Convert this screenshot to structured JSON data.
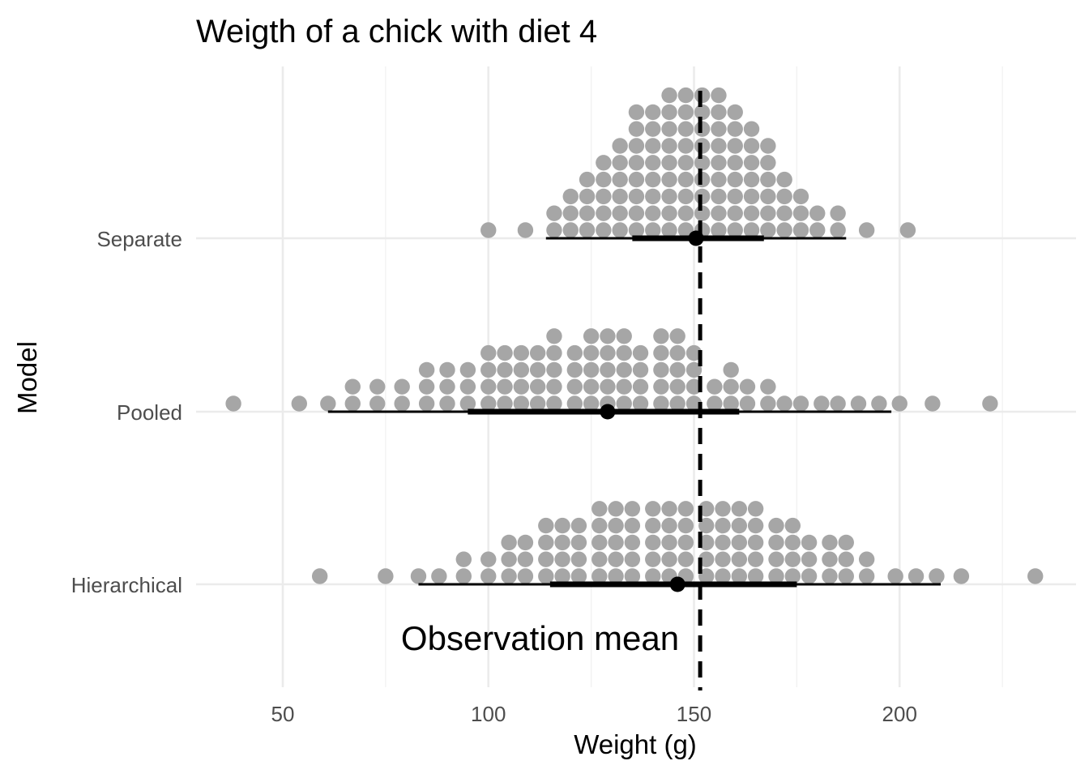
{
  "chart_data": {
    "type": "scatter",
    "title": "Weigth of a chick with diet 4",
    "xlabel": "Weight (g)",
    "ylabel": "Model",
    "xlim": [
      29,
      238
    ],
    "x_ticks": [
      50,
      100,
      150,
      200
    ],
    "x_tick_labels": [
      "50",
      "100",
      "150",
      "200"
    ],
    "categories": [
      "Separate",
      "Pooled",
      "Hierarchical"
    ],
    "grid": "major and minor vertical, major horizontal",
    "legend": "none",
    "reference_line": {
      "x": 151.5,
      "style": "dashed",
      "label": "Observation mean"
    },
    "colors": {
      "dots": "#a6a6a6",
      "summary": "#000000",
      "text": "#000000"
    },
    "series": [
      {
        "name": "Separate",
        "point_estimate": 150.5,
        "interval_66": [
          135,
          167
        ],
        "interval_95": [
          114,
          187
        ],
        "dotplot": [
          {
            "x": 100,
            "count": 1
          },
          {
            "x": 109,
            "count": 1
          },
          {
            "x": 116,
            "count": 2
          },
          {
            "x": 120,
            "count": 3
          },
          {
            "x": 124,
            "count": 4
          },
          {
            "x": 128,
            "count": 5
          },
          {
            "x": 132,
            "count": 6
          },
          {
            "x": 136,
            "count": 8
          },
          {
            "x": 140,
            "count": 8
          },
          {
            "x": 144,
            "count": 9
          },
          {
            "x": 148,
            "count": 9
          },
          {
            "x": 152,
            "count": 9
          },
          {
            "x": 156,
            "count": 9
          },
          {
            "x": 160,
            "count": 8
          },
          {
            "x": 164,
            "count": 7
          },
          {
            "x": 168,
            "count": 6
          },
          {
            "x": 172,
            "count": 4
          },
          {
            "x": 176,
            "count": 3
          },
          {
            "x": 180,
            "count": 2
          },
          {
            "x": 185,
            "count": 2
          },
          {
            "x": 192,
            "count": 1
          },
          {
            "x": 202,
            "count": 1
          }
        ]
      },
      {
        "name": "Pooled",
        "point_estimate": 129,
        "interval_66": [
          95,
          161
        ],
        "interval_95": [
          61,
          198
        ],
        "dotplot": [
          {
            "x": 38,
            "count": 1
          },
          {
            "x": 54,
            "count": 1
          },
          {
            "x": 61,
            "count": 1
          },
          {
            "x": 67,
            "count": 2
          },
          {
            "x": 73,
            "count": 2
          },
          {
            "x": 79,
            "count": 2
          },
          {
            "x": 85,
            "count": 3
          },
          {
            "x": 90,
            "count": 3
          },
          {
            "x": 95,
            "count": 3
          },
          {
            "x": 100,
            "count": 4
          },
          {
            "x": 104,
            "count": 4
          },
          {
            "x": 108,
            "count": 4
          },
          {
            "x": 112,
            "count": 4
          },
          {
            "x": 116,
            "count": 5
          },
          {
            "x": 121,
            "count": 4
          },
          {
            "x": 125,
            "count": 5
          },
          {
            "x": 129,
            "count": 5
          },
          {
            "x": 133,
            "count": 5
          },
          {
            "x": 137,
            "count": 4
          },
          {
            "x": 142,
            "count": 5
          },
          {
            "x": 146,
            "count": 5
          },
          {
            "x": 150,
            "count": 4
          },
          {
            "x": 155,
            "count": 2
          },
          {
            "x": 159,
            "count": 3
          },
          {
            "x": 163,
            "count": 2
          },
          {
            "x": 168,
            "count": 2
          },
          {
            "x": 172,
            "count": 1
          },
          {
            "x": 176,
            "count": 1
          },
          {
            "x": 181,
            "count": 1
          },
          {
            "x": 185,
            "count": 1
          },
          {
            "x": 190,
            "count": 1
          },
          {
            "x": 195,
            "count": 1
          },
          {
            "x": 200,
            "count": 1
          },
          {
            "x": 208,
            "count": 1
          },
          {
            "x": 222,
            "count": 1
          }
        ]
      },
      {
        "name": "Hierarchical",
        "point_estimate": 146,
        "interval_66": [
          115,
          175
        ],
        "interval_95": [
          83,
          210
        ],
        "dotplot": [
          {
            "x": 59,
            "count": 1
          },
          {
            "x": 75,
            "count": 1
          },
          {
            "x": 83,
            "count": 1
          },
          {
            "x": 88,
            "count": 1
          },
          {
            "x": 94,
            "count": 2
          },
          {
            "x": 100,
            "count": 2
          },
          {
            "x": 105,
            "count": 3
          },
          {
            "x": 109,
            "count": 3
          },
          {
            "x": 114,
            "count": 4
          },
          {
            "x": 118,
            "count": 4
          },
          {
            "x": 122,
            "count": 4
          },
          {
            "x": 127,
            "count": 5
          },
          {
            "x": 131,
            "count": 5
          },
          {
            "x": 135,
            "count": 5
          },
          {
            "x": 140,
            "count": 5
          },
          {
            "x": 144,
            "count": 5
          },
          {
            "x": 148,
            "count": 5
          },
          {
            "x": 153,
            "count": 5
          },
          {
            "x": 157,
            "count": 5
          },
          {
            "x": 161,
            "count": 5
          },
          {
            "x": 165,
            "count": 5
          },
          {
            "x": 170,
            "count": 4
          },
          {
            "x": 174,
            "count": 4
          },
          {
            "x": 178,
            "count": 3
          },
          {
            "x": 183,
            "count": 3
          },
          {
            "x": 187,
            "count": 3
          },
          {
            "x": 192,
            "count": 2
          },
          {
            "x": 199,
            "count": 1
          },
          {
            "x": 204,
            "count": 1
          },
          {
            "x": 209,
            "count": 1
          },
          {
            "x": 215,
            "count": 1
          },
          {
            "x": 233,
            "count": 1
          }
        ]
      }
    ]
  }
}
